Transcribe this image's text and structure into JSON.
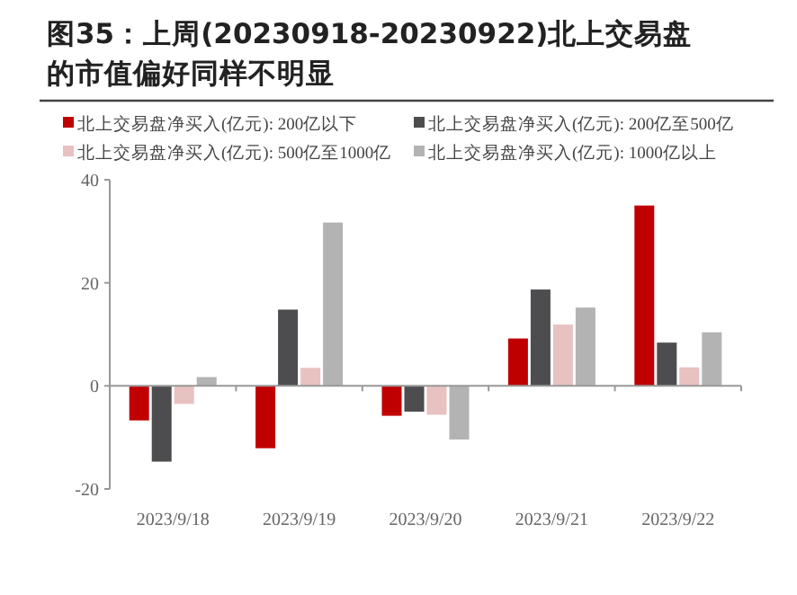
{
  "chart_data": {
    "type": "bar",
    "title": "图35：上周(20230918-20230922)北上交易盘的市值偏好同样不明显",
    "categories": [
      "2023/9/18",
      "2023/9/19",
      "2023/9/20",
      "2023/9/21",
      "2023/9/22"
    ],
    "series": [
      {
        "name": "北上交易盘净买入(亿元): 200亿以下",
        "color": "#c00000",
        "values": [
          -6.7,
          -12.1,
          -5.8,
          9.2,
          35.0
        ]
      },
      {
        "name": "北上交易盘净买入(亿元): 200亿至500亿",
        "color": "#4d4d4f",
        "values": [
          -14.7,
          14.8,
          -5.0,
          18.7,
          8.4
        ]
      },
      {
        "name": "北上交易盘净买入(亿元): 500亿至1000亿",
        "color": "#e8c1c1",
        "values": [
          -3.5,
          3.5,
          -5.6,
          11.9,
          3.6
        ]
      },
      {
        "name": "北上交易盘净买入(亿元): 1000亿以上",
        "color": "#b3b3b3",
        "values": [
          1.7,
          31.7,
          -10.4,
          15.2,
          10.4
        ]
      }
    ],
    "ylim": [
      -20,
      40
    ],
    "yticks": [
      -20,
      0,
      20,
      40
    ],
    "legend": "top"
  }
}
